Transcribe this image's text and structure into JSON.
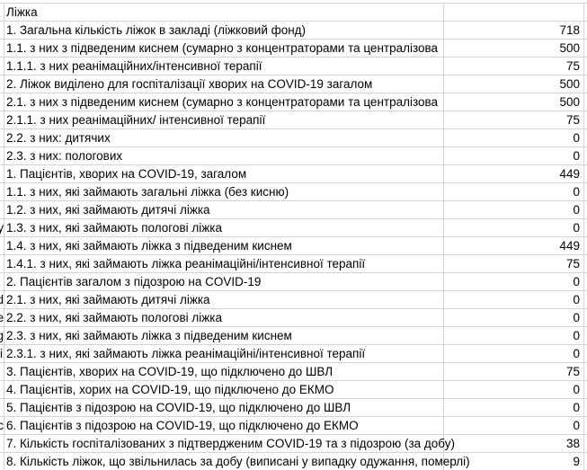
{
  "rows": [
    {
      "a": "",
      "label": "Ліжка",
      "value": ""
    },
    {
      "a": "",
      "label": "1. Загальна кількість ліжок в закладі (ліжковий фонд)",
      "value": "718"
    },
    {
      "a": "",
      "label": "1.1. з них з підведеним киснем (сумарно з концентраторами та централізова",
      "value": "500"
    },
    {
      "a": "",
      "label": "1.1.1. з них реанімаційних/інтенсивної терапії",
      "value": "75"
    },
    {
      "a": "",
      "label": "2. Ліжок виділено для госпіталізації хворих на COVID-19 загалом",
      "value": "500"
    },
    {
      "a": "",
      "label": "2.1. з них з підведеним киснем (сумарно з концентраторами та централізова",
      "value": "500"
    },
    {
      "a": "",
      "label": "2.1.1. з них реанімаційних/ інтенсивної терапії",
      "value": "75"
    },
    {
      "a": "",
      "label": "2.2. з них: дитячих",
      "value": "0"
    },
    {
      "a": "",
      "label": "2.3. з них: пологових",
      "value": "0"
    },
    {
      "a": "",
      "label": "1. Пацієнтів, хворих на COVID-19, загалом",
      "value": "449"
    },
    {
      "a": "",
      "label": "1.1. з них, які займають загальні ліжка (без кисню)",
      "value": "0"
    },
    {
      "a": "",
      "label": "1.2. з них, які займають дитячі ліжка",
      "value": "0"
    },
    {
      "a": "y",
      "label": "1.3. з них, які займають пологові ліжка",
      "value": "0"
    },
    {
      "a": "",
      "label": "1.4. з них, які займають ліжка з підведеним киснем",
      "value": "449"
    },
    {
      "a": "",
      "label": "1.4.1. з них, які займають ліжка реанімаційні/інтенсивної терапії",
      "value": "75"
    },
    {
      "a": "",
      "label": "2. Пацієнтів загалом з підозрою на COVID-19",
      "value": "0"
    },
    {
      "a": "d",
      "label": "2.1. з них, які займають дитячі ліжка",
      "value": "0"
    },
    {
      "a": "e",
      "label": "2.2. з них, які займають пологові ліжка",
      "value": "0"
    },
    {
      "a": "g",
      "label": "2.3. з них, які займають ліжка з підведеним киснем",
      "value": "0"
    },
    {
      "a": "i",
      "label": "2.3.1. з них, які займають ліжка реанімаційні/інтенсивної терапії",
      "value": "0"
    },
    {
      "a": "",
      "label": "3. Пацієнтів, хворих на COVID-19, що підключено до ШВЛ",
      "value": "75"
    },
    {
      "a": "",
      "label": "4.  Пацієнтів, хорих на COVID-19, що підключено до ЕКМО",
      "value": "0"
    },
    {
      "a": "",
      "label": "5. Пацієнтів з підозрою на COVID-19, що підключено до ШВЛ",
      "value": "0"
    },
    {
      "a": "c",
      "label": "6. Пацієнтів з підозрою на COVID-19, що підключено до ЕКМО",
      "value": "0"
    },
    {
      "a": "",
      "label": "7. Кількість госпіталізованих з підтвердженим COVID-19 та з підозрою (за добу)",
      "value": "38"
    },
    {
      "a": "",
      "label": "8. Кількість ліжок, що звільнилась за добу (виписані у випадку одужання, померлі)",
      "value": "9"
    }
  ]
}
